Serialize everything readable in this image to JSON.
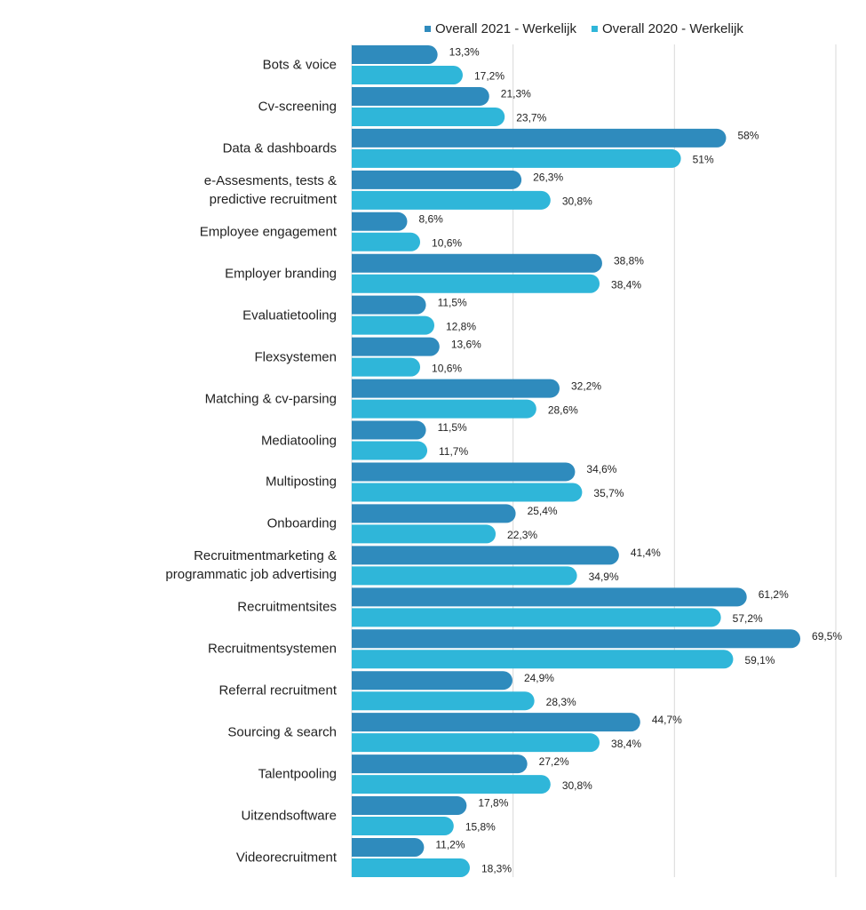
{
  "chart_data": {
    "type": "hbar",
    "categories": [
      "Bots & voice",
      "Cv-screening",
      "Data & dashboards",
      "e-Assesments, tests & predictive recruitment",
      "Employee engagement",
      "Employer branding",
      "Evaluatietooling",
      "Flexsystemen",
      "Matching & cv-parsing",
      "Mediatooling",
      "Multiposting",
      "Onboarding",
      "Recruitmentmarketing & programmatic job advertising",
      "Recruitmentsites",
      "Recruitmentsystemen",
      "Referral recruitment",
      "Sourcing & search",
      "Talentpooling",
      "Uitzendsoftware",
      "Videorecruitment"
    ],
    "series": [
      {
        "name": "Overall 2021 - Werkelijk",
        "color": "#2f8bbd",
        "values": [
          13.3,
          21.3,
          58,
          26.3,
          8.6,
          38.8,
          11.5,
          13.6,
          32.2,
          11.5,
          34.6,
          25.4,
          41.4,
          61.2,
          69.5,
          24.9,
          44.7,
          27.2,
          17.8,
          11.2
        ],
        "value_labels": [
          "13,3%",
          "21,3%",
          "58%",
          "26,3%",
          "8,6%",
          "38,8%",
          "11,5%",
          "13,6%",
          "32,2%",
          "11,5%",
          "34,6%",
          "25,4%",
          "41,4%",
          "61,2%",
          "69,5%",
          "24,9%",
          "44,7%",
          "27,2%",
          "17,8%",
          "11,2%"
        ]
      },
      {
        "name": "Overall 2020 - Werkelijk",
        "color": "#2fb6d9",
        "values": [
          17.2,
          23.7,
          51,
          30.8,
          10.6,
          38.4,
          12.8,
          10.6,
          28.6,
          11.7,
          35.7,
          22.3,
          34.9,
          57.2,
          59.1,
          28.3,
          38.4,
          30.8,
          15.8,
          18.3
        ],
        "value_labels": [
          "17,2%",
          "23,7%",
          "51%",
          "30,8%",
          "10,6%",
          "38,4%",
          "12,8%",
          "10,6%",
          "28,6%",
          "11,7%",
          "35,7%",
          "22,3%",
          "34,9%",
          "57,2%",
          "59,1%",
          "28,3%",
          "38,4%",
          "30,8%",
          "15,8%",
          "18,3%"
        ]
      }
    ],
    "xlim": [
      0,
      75
    ],
    "xticks": [
      0,
      25,
      50,
      75
    ],
    "grid": true,
    "legend": "top"
  }
}
